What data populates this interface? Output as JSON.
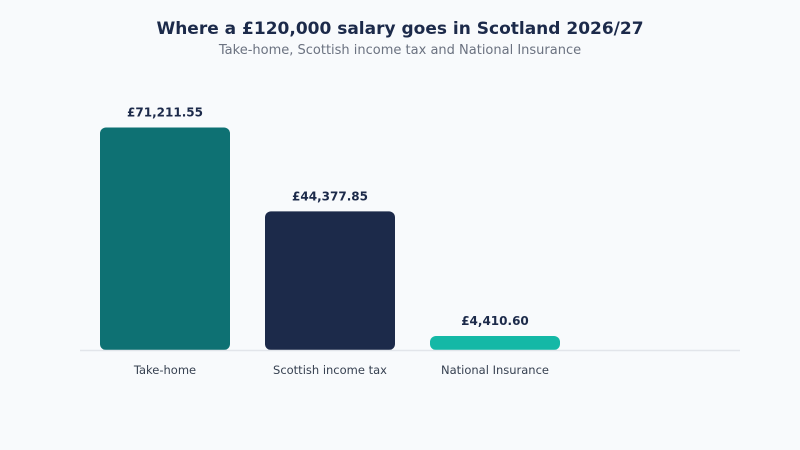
{
  "chart_data": {
    "type": "bar",
    "title": "Where a £120,000 salary goes in Scotland 2026/27",
    "subtitle": "Take-home, Scottish income tax and National Insurance",
    "xlabel": "",
    "ylabel": "",
    "categories": [
      "Take-home",
      "Scottish income tax",
      "National Insurance"
    ],
    "values": [
      71211.55,
      44377.85,
      4410.6
    ],
    "value_labels": [
      "£71,211.55",
      "£44,377.85",
      "£4,410.60"
    ],
    "colors": [
      "#0e7173",
      "#1c2a4a",
      "#14b8a6"
    ],
    "ylim": [
      0,
      80000
    ],
    "grid": false,
    "legend": "none"
  }
}
